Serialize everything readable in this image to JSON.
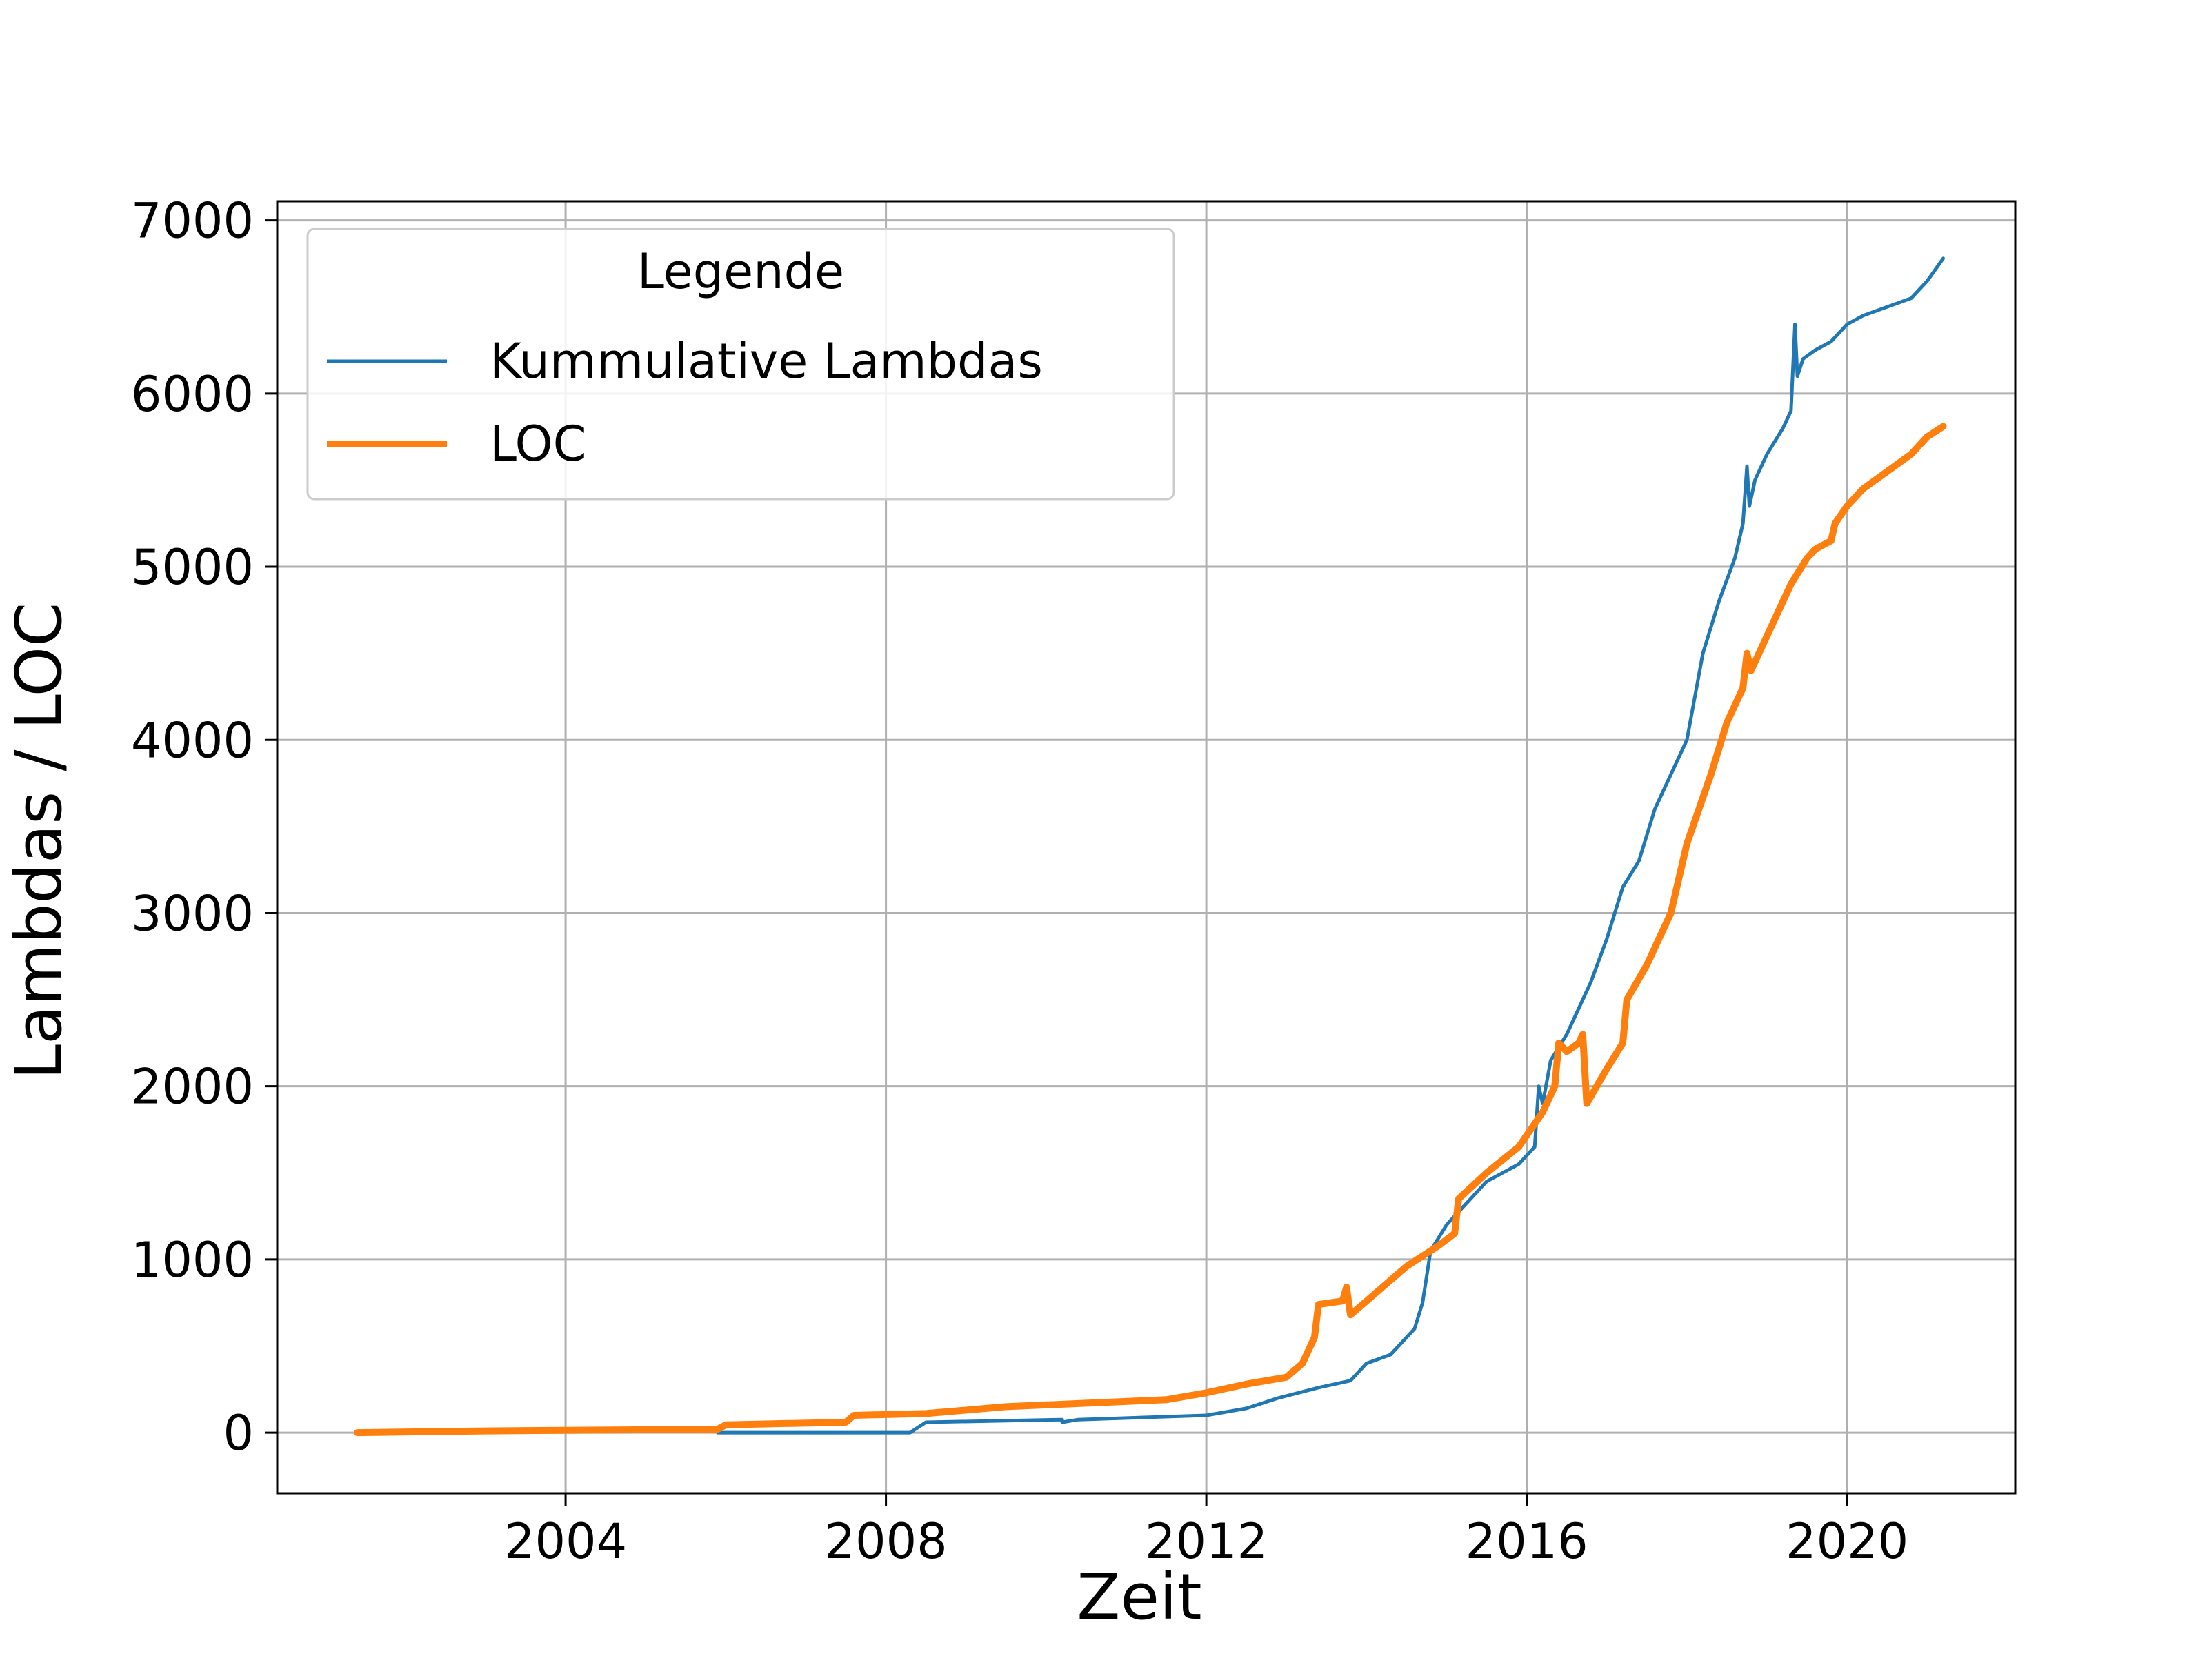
{
  "colors": {
    "lambdas": "#1f77b4",
    "loc": "#ff7f0e",
    "grid": "#b0b0b0",
    "axes": "#000000",
    "background": "#ffffff"
  },
  "chart_data": {
    "type": "line",
    "title": "",
    "xlabel": "Zeit",
    "ylabel": "Lambdas / LOC",
    "x_axis_kind": "year",
    "xlim": [
      2000.4,
      2022.1
    ],
    "ylim": [
      -350,
      7110
    ],
    "x_ticks": [
      2004,
      2008,
      2012,
      2016,
      2020
    ],
    "x_tick_labels": [
      "2004",
      "2008",
      "2012",
      "2016",
      "2020"
    ],
    "y_ticks": [
      0,
      1000,
      2000,
      3000,
      4000,
      5000,
      6000,
      7000
    ],
    "y_tick_labels": [
      "0",
      "1000",
      "2000",
      "3000",
      "4000",
      "5000",
      "6000",
      "7000"
    ],
    "grid": true,
    "legend": {
      "title": "Legende",
      "position": "top-left",
      "entries": [
        "Kummulative Lambdas",
        "LOC"
      ]
    },
    "series": [
      {
        "name": "Kummulative Lambdas",
        "color": "#1f77b4",
        "line_width": "thin",
        "x": [
          2005.9,
          2008.3,
          2008.5,
          2010.2,
          2010.2,
          2010.4,
          2012.0,
          2012.5,
          2012.9,
          2013.4,
          2013.8,
          2014.0,
          2014.3,
          2014.6,
          2014.7,
          2014.8,
          2015.0,
          2015.3,
          2015.5,
          2015.9,
          2016.1,
          2016.15,
          2016.2,
          2016.3,
          2016.5,
          2016.6,
          2016.8,
          2017.0,
          2017.2,
          2017.4,
          2017.6,
          2017.8,
          2018.0,
          2018.2,
          2018.4,
          2018.6,
          2018.7,
          2018.75,
          2018.78,
          2018.85,
          2019.0,
          2019.2,
          2019.3,
          2019.35,
          2019.38,
          2019.45,
          2019.6,
          2019.8,
          2020.0,
          2020.2,
          2020.5,
          2020.8,
          2021.0,
          2021.2
        ],
        "y": [
          0,
          0,
          60,
          75,
          60,
          75,
          100,
          140,
          200,
          260,
          300,
          400,
          450,
          600,
          750,
          1050,
          1200,
          1350,
          1450,
          1550,
          1650,
          2000,
          1900,
          2150,
          2300,
          2400,
          2600,
          2850,
          3150,
          3300,
          3600,
          3800,
          4000,
          4500,
          4800,
          5050,
          5250,
          5580,
          5350,
          5500,
          5650,
          5800,
          5900,
          6400,
          6100,
          6200,
          6250,
          6300,
          6400,
          6450,
          6500,
          6550,
          6650,
          6780
        ]
      },
      {
        "name": "LOC",
        "color": "#ff7f0e",
        "line_width": "thick",
        "x": [
          2001.4,
          2003.0,
          2005.9,
          2006.0,
          2007.5,
          2007.6,
          2008.5,
          2009.5,
          2010.5,
          2011.5,
          2012.0,
          2012.5,
          2013.0,
          2013.2,
          2013.35,
          2013.4,
          2013.7,
          2013.75,
          2013.8,
          2014.1,
          2014.5,
          2014.9,
          2015.1,
          2015.15,
          2015.5,
          2015.9,
          2016.2,
          2016.35,
          2016.4,
          2016.5,
          2016.65,
          2016.7,
          2016.75,
          2017.0,
          2017.2,
          2017.25,
          2017.5,
          2017.8,
          2018.0,
          2018.3,
          2018.5,
          2018.7,
          2018.75,
          2018.8,
          2019.0,
          2019.3,
          2019.5,
          2019.6,
          2019.8,
          2019.85,
          2020.0,
          2020.2,
          2020.5,
          2020.8,
          2021.0,
          2021.2
        ],
        "y": [
          0,
          10,
          20,
          45,
          60,
          100,
          110,
          150,
          170,
          190,
          230,
          280,
          320,
          400,
          550,
          740,
          760,
          840,
          680,
          800,
          960,
          1080,
          1150,
          1350,
          1500,
          1650,
          1850,
          2000,
          2250,
          2200,
          2250,
          2300,
          1900,
          2100,
          2250,
          2500,
          2700,
          3000,
          3400,
          3800,
          4100,
          4300,
          4500,
          4400,
          4600,
          4900,
          5050,
          5100,
          5150,
          5250,
          5350,
          5450,
          5550,
          5650,
          5750,
          5810
        ]
      }
    ]
  }
}
